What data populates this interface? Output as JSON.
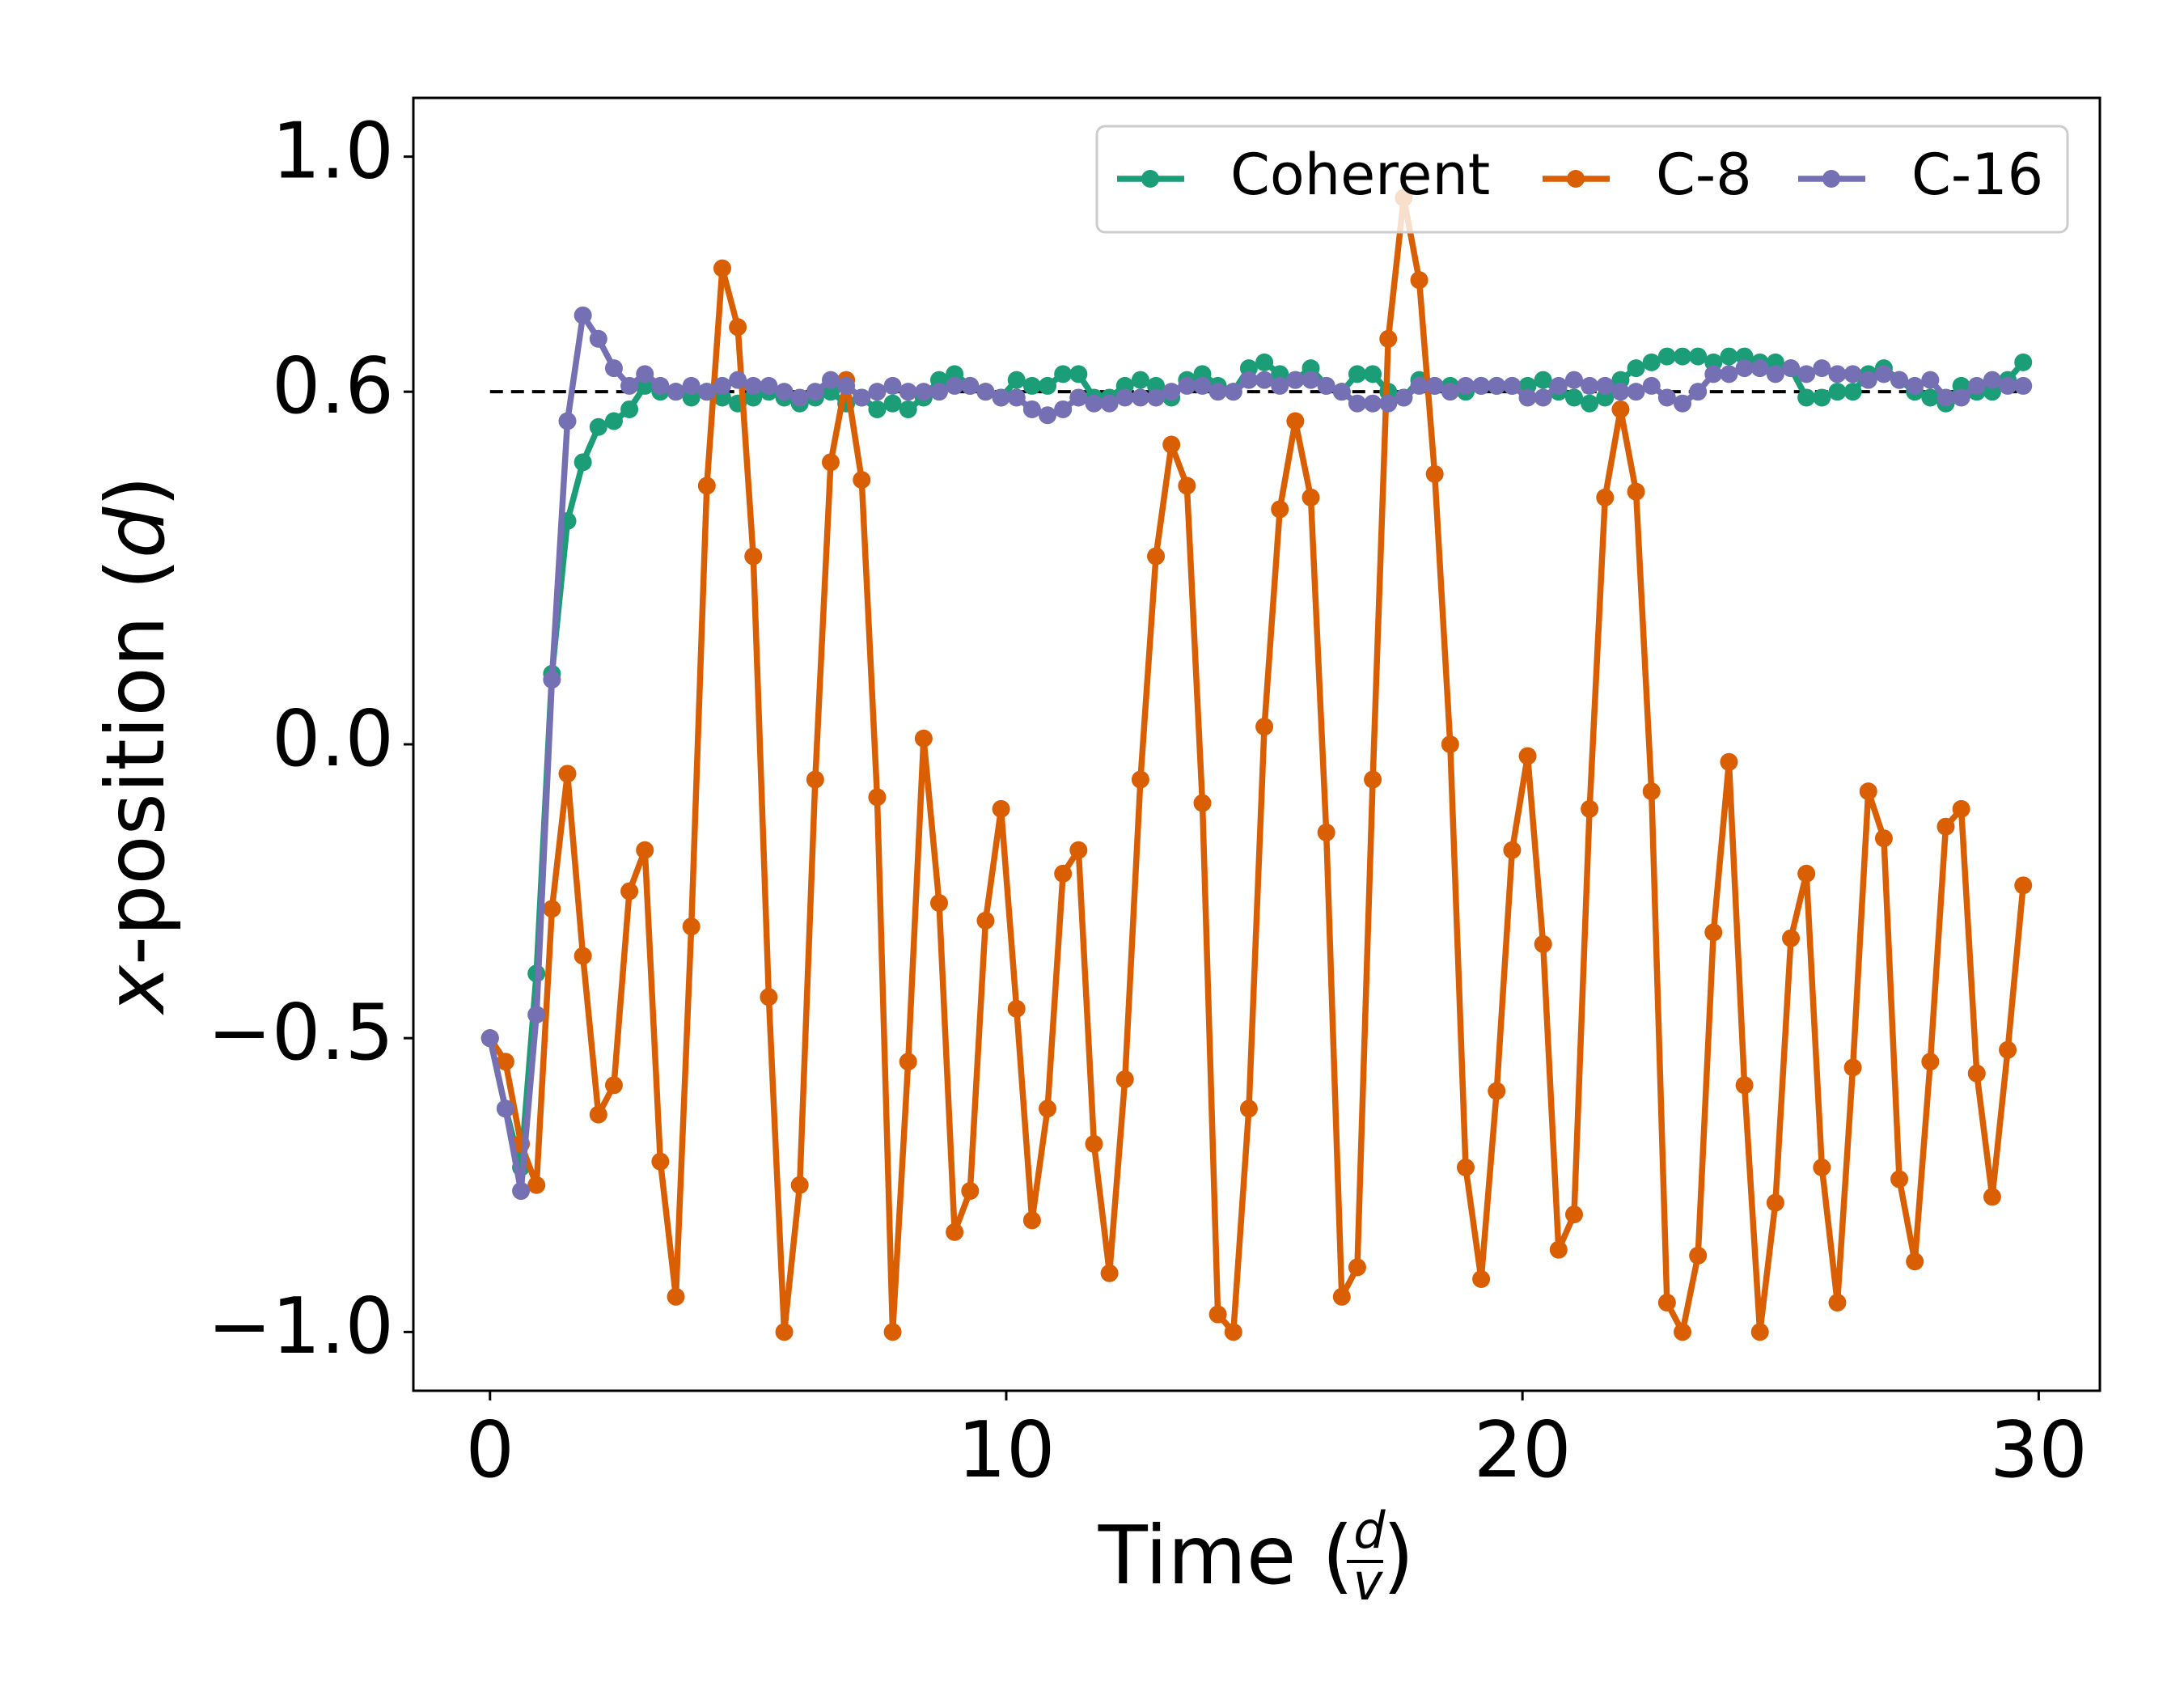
{
  "chart_data": {
    "type": "line",
    "xlabel_parts": [
      "Time (",
      "d",
      "v",
      ")"
    ],
    "ylabel_parts": [
      "x",
      "-position (",
      "d",
      ")"
    ],
    "x": [
      0,
      0.3,
      0.6,
      0.9,
      1.2,
      1.5,
      1.8,
      2.1,
      2.4,
      2.7,
      3.0,
      3.3,
      3.6,
      3.9,
      4.2,
      4.5,
      4.8,
      5.1,
      5.4,
      5.7,
      6.0,
      6.3,
      6.6,
      6.9,
      7.2,
      7.5,
      7.8,
      8.1,
      8.4,
      8.7,
      9.0,
      9.3,
      9.6,
      9.9,
      10.2,
      10.5,
      10.8,
      11.1,
      11.4,
      11.7,
      12.0,
      12.3,
      12.6,
      12.9,
      13.2,
      13.5,
      13.8,
      14.1,
      14.4,
      14.7,
      15.0,
      15.3,
      15.6,
      15.9,
      16.2,
      16.5,
      16.8,
      17.1,
      17.4,
      17.7,
      18.0,
      18.3,
      18.6,
      18.9,
      19.2,
      19.5,
      19.8,
      20.1,
      20.4,
      20.7,
      21.0,
      21.3,
      21.6,
      21.9,
      22.2,
      22.5,
      22.8,
      23.1,
      23.4,
      23.7,
      24.0,
      24.3,
      24.6,
      24.9,
      25.2,
      25.5,
      25.8,
      26.1,
      26.4,
      26.7,
      27.0,
      27.3,
      27.6,
      27.9,
      28.2,
      28.5,
      28.8,
      29.1,
      29.4,
      29.7
    ],
    "series": [
      {
        "name": "Coherent",
        "color": "#1b9e77",
        "values": [
          -0.5,
          -0.62,
          -0.72,
          -0.39,
          0.12,
          0.38,
          0.48,
          0.54,
          0.55,
          0.57,
          0.61,
          0.6,
          0.6,
          0.59,
          0.6,
          0.59,
          0.58,
          0.59,
          0.6,
          0.59,
          0.58,
          0.59,
          0.6,
          0.58,
          0.59,
          0.57,
          0.58,
          0.57,
          0.59,
          0.62,
          0.63,
          0.61,
          0.6,
          0.59,
          0.62,
          0.61,
          0.61,
          0.63,
          0.63,
          0.59,
          0.59,
          0.61,
          0.62,
          0.61,
          0.59,
          0.62,
          0.63,
          0.61,
          0.6,
          0.64,
          0.65,
          0.63,
          0.62,
          0.64,
          0.61,
          0.6,
          0.63,
          0.63,
          0.6,
          0.59,
          0.62,
          0.61,
          0.61,
          0.6,
          0.61,
          0.61,
          0.61,
          0.61,
          0.62,
          0.6,
          0.59,
          0.58,
          0.59,
          0.62,
          0.64,
          0.65,
          0.66,
          0.66,
          0.66,
          0.65,
          0.66,
          0.66,
          0.65,
          0.65,
          0.64,
          0.59,
          0.59,
          0.6,
          0.6,
          0.63,
          0.64,
          0.62,
          0.6,
          0.59,
          0.58,
          0.61,
          0.6,
          0.6,
          0.62,
          0.65
        ]
      },
      {
        "name": "C-8",
        "color": "#d95f02",
        "values": [
          -0.5,
          -0.54,
          -0.68,
          -0.75,
          -0.28,
          -0.05,
          -0.36,
          -0.63,
          -0.58,
          -0.25,
          -0.18,
          -0.71,
          -0.94,
          -0.31,
          0.44,
          0.81,
          0.71,
          0.32,
          -0.43,
          -1.0,
          -0.75,
          -0.06,
          0.48,
          0.62,
          0.45,
          -0.09,
          -1.0,
          -0.54,
          0.01,
          -0.27,
          -0.83,
          -0.76,
          -0.3,
          -0.11,
          -0.45,
          -0.81,
          -0.62,
          -0.22,
          -0.18,
          -0.68,
          -0.9,
          -0.57,
          -0.06,
          0.32,
          0.51,
          0.44,
          -0.1,
          -0.97,
          -1.0,
          -0.62,
          0.03,
          0.4,
          0.55,
          0.42,
          -0.15,
          -0.94,
          -0.89,
          -0.06,
          0.69,
          0.93,
          0.79,
          0.46,
          0.0,
          -0.72,
          -0.91,
          -0.59,
          -0.18,
          -0.02,
          -0.34,
          -0.86,
          -0.8,
          -0.11,
          0.42,
          0.57,
          0.43,
          -0.08,
          -0.95,
          -1.0,
          -0.87,
          -0.32,
          -0.03,
          -0.58,
          -1.0,
          -0.78,
          -0.33,
          -0.22,
          -0.72,
          -0.95,
          -0.55,
          -0.08,
          -0.16,
          -0.74,
          -0.88,
          -0.54,
          -0.14,
          -0.11,
          -0.56,
          -0.77,
          -0.52,
          -0.24
        ]
      },
      {
        "name": "C-16",
        "color": "#7570b3",
        "values": [
          -0.5,
          -0.62,
          -0.76,
          -0.46,
          0.11,
          0.55,
          0.73,
          0.69,
          0.64,
          0.61,
          0.63,
          0.61,
          0.6,
          0.61,
          0.6,
          0.61,
          0.62,
          0.61,
          0.61,
          0.6,
          0.59,
          0.6,
          0.62,
          0.61,
          0.59,
          0.6,
          0.61,
          0.6,
          0.6,
          0.6,
          0.61,
          0.61,
          0.6,
          0.59,
          0.59,
          0.57,
          0.56,
          0.57,
          0.59,
          0.58,
          0.58,
          0.59,
          0.59,
          0.59,
          0.6,
          0.61,
          0.61,
          0.6,
          0.6,
          0.62,
          0.62,
          0.61,
          0.62,
          0.62,
          0.61,
          0.6,
          0.58,
          0.58,
          0.58,
          0.59,
          0.61,
          0.61,
          0.6,
          0.61,
          0.61,
          0.61,
          0.61,
          0.59,
          0.59,
          0.61,
          0.62,
          0.61,
          0.61,
          0.6,
          0.6,
          0.61,
          0.59,
          0.58,
          0.6,
          0.63,
          0.63,
          0.64,
          0.64,
          0.63,
          0.64,
          0.63,
          0.64,
          0.63,
          0.63,
          0.62,
          0.63,
          0.62,
          0.61,
          0.62,
          0.59,
          0.59,
          0.61,
          0.62,
          0.61,
          0.61
        ]
      }
    ],
    "hline": {
      "y": 0.6,
      "xmin": 0,
      "xmax": 29.7,
      "color": "#000000"
    },
    "xlim": [
      -1.485,
      31.185
    ],
    "ylim": [
      -1.1,
      1.1
    ],
    "xticks": [
      0,
      10,
      20,
      30
    ],
    "yticks": [
      {
        "value": -1.0,
        "label": "−1.0"
      },
      {
        "value": -0.5,
        "label": "−0.5"
      },
      {
        "value": 0.0,
        "label": "0.0"
      },
      {
        "value": 0.6,
        "label": "0.6"
      },
      {
        "value": 1.0,
        "label": "1.0"
      }
    ],
    "legend": "upper right",
    "grid": false
  }
}
